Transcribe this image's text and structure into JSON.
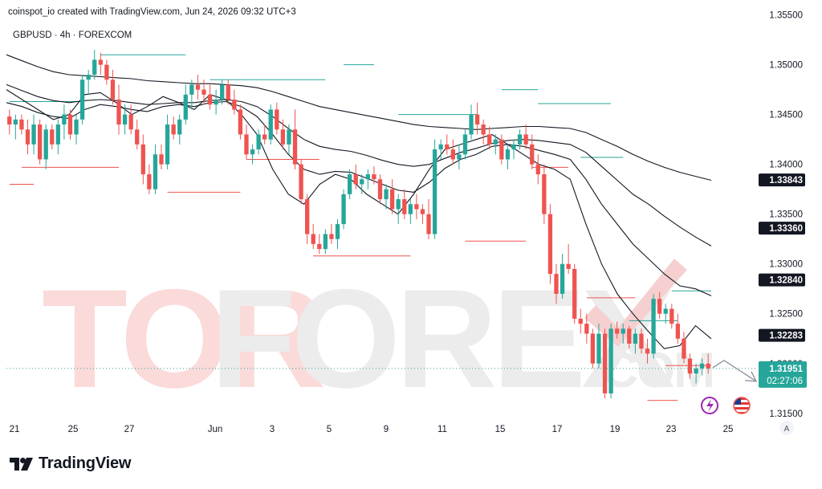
{
  "header": {
    "credit": "coinspot_io created with TradingView.com, Jun 24, 2026 09:32 UTC+3",
    "symbol": "GBPUSD · 4h · FOREXCOM"
  },
  "footer": {
    "brand": "TradingView"
  },
  "watermark": {
    "left": "TOR",
    "right": "FOREX",
    "suffix": ".COM"
  },
  "colors": {
    "up": "#26a69a",
    "down": "#ef5350",
    "ma": "#131722",
    "level_green": "#26a69a",
    "level_red": "#ef5350",
    "wm_left": "#fbdada",
    "wm_right": "#ececec",
    "wm_check": "#f6d0d0"
  },
  "icons": [
    "lightning-icon",
    "us-flag-icon",
    "auto-scale-icon"
  ],
  "chart_data": {
    "type": "candlestick",
    "y_axis": {
      "min": 1.312,
      "max": 1.3565,
      "ticks": [
        "1.35500",
        "1.35000",
        "1.34500",
        "1.34000",
        "1.33500",
        "1.33000",
        "1.32500",
        "1.32000",
        "1.31500"
      ]
    },
    "x_axis_labels": [
      "21",
      "25",
      "27",
      "Jun",
      "3",
      "5",
      "9",
      "11",
      "15",
      "17",
      "19",
      "23",
      "25"
    ],
    "current_price": {
      "value": "1.31951",
      "countdown": "02:27:06"
    },
    "ma_labels": [
      "1.33843",
      "1.33360",
      "1.32840",
      "1.32283"
    ],
    "candles": [
      [
        1.3448,
        1.3455,
        1.343,
        1.344
      ],
      [
        1.344,
        1.345,
        1.3425,
        1.3445
      ],
      [
        1.3445,
        1.345,
        1.343,
        1.3435
      ],
      [
        1.3435,
        1.3445,
        1.341,
        1.342
      ],
      [
        1.342,
        1.345,
        1.341,
        1.344
      ],
      [
        1.344,
        1.3445,
        1.34,
        1.3405
      ],
      [
        1.3405,
        1.344,
        1.3395,
        1.3435
      ],
      [
        1.3435,
        1.344,
        1.3415,
        1.342
      ],
      [
        1.342,
        1.3445,
        1.341,
        1.344
      ],
      [
        1.344,
        1.346,
        1.3425,
        1.345
      ],
      [
        1.345,
        1.3455,
        1.3425,
        1.343
      ],
      [
        1.343,
        1.345,
        1.342,
        1.3445
      ],
      [
        1.3445,
        1.349,
        1.344,
        1.3485
      ],
      [
        1.3485,
        1.3495,
        1.347,
        1.349
      ],
      [
        1.349,
        1.3515,
        1.3485,
        1.3505
      ],
      [
        1.3505,
        1.3512,
        1.349,
        1.35
      ],
      [
        1.35,
        1.3505,
        1.348,
        1.3485
      ],
      [
        1.3485,
        1.3495,
        1.346,
        1.3465
      ],
      [
        1.3465,
        1.348,
        1.343,
        1.344
      ],
      [
        1.344,
        1.346,
        1.343,
        1.345
      ],
      [
        1.345,
        1.346,
        1.343,
        1.3435
      ],
      [
        1.3435,
        1.3445,
        1.3415,
        1.342
      ],
      [
        1.342,
        1.343,
        1.338,
        1.339
      ],
      [
        1.339,
        1.34,
        1.337,
        1.3375
      ],
      [
        1.3375,
        1.342,
        1.337,
        1.341
      ],
      [
        1.341,
        1.342,
        1.3395,
        1.34
      ],
      [
        1.34,
        1.345,
        1.3395,
        1.344
      ],
      [
        1.344,
        1.3448,
        1.3425,
        1.343
      ],
      [
        1.343,
        1.345,
        1.342,
        1.3445
      ],
      [
        1.3445,
        1.348,
        1.344,
        1.347
      ],
      [
        1.347,
        1.3485,
        1.3455,
        1.348
      ],
      [
        1.348,
        1.349,
        1.3465,
        1.3475
      ],
      [
        1.3475,
        1.3485,
        1.346,
        1.347
      ],
      [
        1.347,
        1.348,
        1.3455,
        1.346
      ],
      [
        1.346,
        1.3475,
        1.345,
        1.3465
      ],
      [
        1.3465,
        1.3485,
        1.346,
        1.348
      ],
      [
        1.348,
        1.3485,
        1.346,
        1.3465
      ],
      [
        1.3465,
        1.3475,
        1.345,
        1.3455
      ],
      [
        1.3455,
        1.346,
        1.3425,
        1.343
      ],
      [
        1.343,
        1.344,
        1.3405,
        1.341
      ],
      [
        1.341,
        1.342,
        1.34,
        1.3415
      ],
      [
        1.3415,
        1.3435,
        1.341,
        1.343
      ],
      [
        1.343,
        1.344,
        1.342,
        1.3425
      ],
      [
        1.3425,
        1.346,
        1.342,
        1.3455
      ],
      [
        1.3455,
        1.3462,
        1.343,
        1.3435
      ],
      [
        1.3435,
        1.3445,
        1.3415,
        1.342
      ],
      [
        1.342,
        1.344,
        1.341,
        1.3435
      ],
      [
        1.3435,
        1.3455,
        1.3395,
        1.34
      ],
      [
        1.34,
        1.3405,
        1.336,
        1.3365
      ],
      [
        1.3365,
        1.337,
        1.332,
        1.333
      ],
      [
        1.333,
        1.334,
        1.3315,
        1.332
      ],
      [
        1.332,
        1.333,
        1.331,
        1.3315
      ],
      [
        1.3315,
        1.3335,
        1.331,
        1.333
      ],
      [
        1.333,
        1.334,
        1.332,
        1.3325
      ],
      [
        1.3325,
        1.3345,
        1.3315,
        1.334
      ],
      [
        1.334,
        1.3375,
        1.3335,
        1.337
      ],
      [
        1.337,
        1.3395,
        1.3365,
        1.339
      ],
      [
        1.339,
        1.34,
        1.3375,
        1.338
      ],
      [
        1.338,
        1.339,
        1.337,
        1.3385
      ],
      [
        1.3385,
        1.3395,
        1.3375,
        1.339
      ],
      [
        1.339,
        1.3398,
        1.338,
        1.3385
      ],
      [
        1.3385,
        1.339,
        1.336,
        1.3365
      ],
      [
        1.3365,
        1.338,
        1.3355,
        1.3375
      ],
      [
        1.3375,
        1.3385,
        1.335,
        1.3355
      ],
      [
        1.3355,
        1.337,
        1.334,
        1.3365
      ],
      [
        1.3365,
        1.3375,
        1.3345,
        1.335
      ],
      [
        1.335,
        1.3365,
        1.334,
        1.336
      ],
      [
        1.336,
        1.337,
        1.3345,
        1.3355
      ],
      [
        1.3355,
        1.336,
        1.334,
        1.335
      ],
      [
        1.335,
        1.3365,
        1.3325,
        1.333
      ],
      [
        1.333,
        1.3425,
        1.3325,
        1.3415
      ],
      [
        1.3415,
        1.3425,
        1.3405,
        1.342
      ],
      [
        1.342,
        1.343,
        1.341,
        1.3415
      ],
      [
        1.3415,
        1.3425,
        1.34,
        1.3405
      ],
      [
        1.3405,
        1.342,
        1.3395,
        1.341
      ],
      [
        1.341,
        1.3435,
        1.3405,
        1.343
      ],
      [
        1.343,
        1.346,
        1.3425,
        1.345
      ],
      [
        1.345,
        1.3462,
        1.343,
        1.344
      ],
      [
        1.344,
        1.3445,
        1.342,
        1.343
      ],
      [
        1.343,
        1.3438,
        1.3415,
        1.342
      ],
      [
        1.342,
        1.343,
        1.341,
        1.3425
      ],
      [
        1.3425,
        1.343,
        1.34,
        1.3405
      ],
      [
        1.3405,
        1.342,
        1.3395,
        1.3415
      ],
      [
        1.3415,
        1.3425,
        1.3405,
        1.342
      ],
      [
        1.342,
        1.3435,
        1.3415,
        1.343
      ],
      [
        1.343,
        1.344,
        1.3415,
        1.342
      ],
      [
        1.342,
        1.343,
        1.3395,
        1.34
      ],
      [
        1.34,
        1.341,
        1.338,
        1.339
      ],
      [
        1.339,
        1.34,
        1.334,
        1.335
      ],
      [
        1.335,
        1.336,
        1.328,
        1.329
      ],
      [
        1.329,
        1.33,
        1.326,
        1.327
      ],
      [
        1.327,
        1.331,
        1.3265,
        1.33
      ],
      [
        1.33,
        1.332,
        1.329,
        1.3295
      ],
      [
        1.3295,
        1.33,
        1.324,
        1.3245
      ],
      [
        1.3245,
        1.3255,
        1.323,
        1.324
      ],
      [
        1.324,
        1.325,
        1.322,
        1.323
      ],
      [
        1.323,
        1.3235,
        1.3195,
        1.32
      ],
      [
        1.32,
        1.324,
        1.3195,
        1.323
      ],
      [
        1.323,
        1.3235,
        1.3165,
        1.317
      ],
      [
        1.317,
        1.324,
        1.3165,
        1.3235
      ],
      [
        1.3235,
        1.3242,
        1.3225,
        1.323
      ],
      [
        1.323,
        1.324,
        1.322,
        1.3235
      ],
      [
        1.3235,
        1.3238,
        1.3215,
        1.322
      ],
      [
        1.322,
        1.3235,
        1.321,
        1.323
      ],
      [
        1.323,
        1.3235,
        1.321,
        1.3215
      ],
      [
        1.3215,
        1.3225,
        1.32,
        1.321
      ],
      [
        1.321,
        1.327,
        1.3205,
        1.3265
      ],
      [
        1.3265,
        1.3272,
        1.3245,
        1.325
      ],
      [
        1.325,
        1.326,
        1.324,
        1.3255
      ],
      [
        1.3255,
        1.326,
        1.3235,
        1.324
      ],
      [
        1.324,
        1.325,
        1.322,
        1.3225
      ],
      [
        1.3225,
        1.3232,
        1.32,
        1.3205
      ],
      [
        1.3205,
        1.321,
        1.3185,
        1.319
      ],
      [
        1.319,
        1.32,
        1.318,
        1.3195
      ],
      [
        1.3195,
        1.3205,
        1.3188,
        1.32
      ],
      [
        1.32,
        1.321,
        1.319,
        1.3195
      ]
    ],
    "moving_averages": [
      {
        "name": "",
        "values": [
          1.3475,
          1.3465,
          1.3455,
          1.3445,
          1.345,
          1.347,
          1.3472,
          1.3462,
          1.345,
          1.3458,
          1.3468,
          1.3462,
          1.3455,
          1.347,
          1.3465,
          1.345,
          1.343,
          1.3395,
          1.337,
          1.336,
          1.338,
          1.339,
          1.3385,
          1.337,
          1.336,
          1.335,
          1.337,
          1.3395,
          1.3415,
          1.342,
          1.3425,
          1.343,
          1.342,
          1.341,
          1.34,
          1.3395,
          1.3385,
          1.334,
          1.33,
          1.327,
          1.325,
          1.3232,
          1.3215,
          1.3218,
          1.3238,
          1.3225
        ]
      },
      {
        "name": "",
        "values": [
          1.3462,
          1.3458,
          1.3452,
          1.3448,
          1.3446,
          1.3455,
          1.346,
          1.3458,
          1.3455,
          1.3453,
          1.3458,
          1.346,
          1.3458,
          1.3462,
          1.3463,
          1.3458,
          1.3448,
          1.343,
          1.341,
          1.3395,
          1.339,
          1.3393,
          1.3392,
          1.3386,
          1.338,
          1.3374,
          1.3372,
          1.3382,
          1.3396,
          1.3405,
          1.341,
          1.3418,
          1.342,
          1.3418,
          1.3414,
          1.341,
          1.3405,
          1.3385,
          1.336,
          1.334,
          1.332,
          1.3305,
          1.329,
          1.3278,
          1.3275,
          1.3268
        ]
      },
      {
        "name": "",
        "values": [
          1.348,
          1.3474,
          1.3468,
          1.3464,
          1.3462,
          1.3464,
          1.3465,
          1.3464,
          1.3462,
          1.346,
          1.3461,
          1.3462,
          1.3462,
          1.3464,
          1.3465,
          1.3463,
          1.3458,
          1.3448,
          1.3436,
          1.3425,
          1.3418,
          1.3415,
          1.3413,
          1.3409,
          1.3404,
          1.34,
          1.3398,
          1.34,
          1.3406,
          1.3412,
          1.3416,
          1.3421,
          1.3424,
          1.3425,
          1.3424,
          1.3422,
          1.342,
          1.3412,
          1.3398,
          1.3384,
          1.337,
          1.336,
          1.3348,
          1.3337,
          1.3327,
          1.3318
        ]
      },
      {
        "name": "",
        "values": [
          1.351,
          1.3504,
          1.3498,
          1.3493,
          1.349,
          1.3489,
          1.3488,
          1.3487,
          1.3486,
          1.3484,
          1.3483,
          1.3482,
          1.3481,
          1.3481,
          1.348,
          1.3479,
          1.3477,
          1.3473,
          1.3468,
          1.3463,
          1.3458,
          1.3455,
          1.3452,
          1.3449,
          1.3446,
          1.3443,
          1.344,
          1.3438,
          1.3437,
          1.3436,
          1.3435,
          1.3436,
          1.3437,
          1.3438,
          1.3438,
          1.3437,
          1.3436,
          1.3432,
          1.3425,
          1.3418,
          1.341,
          1.3403,
          1.3397,
          1.3392,
          1.3388,
          1.3384
        ]
      }
    ],
    "levels": [
      {
        "kind": "high",
        "from": 0,
        "to": 12,
        "value": 1.3463
      },
      {
        "kind": "low",
        "from": 2,
        "to": 18,
        "value": 1.3397
      },
      {
        "kind": "low",
        "from": 0,
        "to": 4,
        "value": 1.338
      },
      {
        "kind": "high",
        "from": 15,
        "to": 29,
        "value": 1.351
      },
      {
        "kind": "low",
        "from": 26,
        "to": 38,
        "value": 1.3372
      },
      {
        "kind": "high",
        "from": 33,
        "to": 52,
        "value": 1.3485
      },
      {
        "kind": "low",
        "from": 39,
        "to": 51,
        "value": 1.3405
      },
      {
        "kind": "high",
        "from": 55,
        "to": 60,
        "value": 1.35
      },
      {
        "kind": "low",
        "from": 50,
        "to": 66,
        "value": 1.3308
      },
      {
        "kind": "high",
        "from": 64,
        "to": 77,
        "value": 1.345
      },
      {
        "kind": "low",
        "from": 75,
        "to": 85,
        "value": 1.3323
      },
      {
        "kind": "high",
        "from": 81,
        "to": 87,
        "value": 1.3475
      },
      {
        "kind": "high",
        "from": 87,
        "to": 99,
        "value": 1.3461
      },
      {
        "kind": "low",
        "from": 86,
        "to": 92,
        "value": 1.3397
      },
      {
        "kind": "high",
        "from": 94,
        "to": 101,
        "value": 1.3407
      },
      {
        "kind": "low",
        "from": 95,
        "to": 103,
        "value": 1.3266
      },
      {
        "kind": "high",
        "from": 102,
        "to": 110,
        "value": 1.3243
      },
      {
        "kind": "low",
        "from": 105,
        "to": 110,
        "value": 1.3163
      },
      {
        "kind": "high",
        "from": 109,
        "to": 116,
        "value": 1.3273
      },
      {
        "kind": "low",
        "from": 108,
        "to": 117,
        "value": 1.3198
      }
    ]
  }
}
